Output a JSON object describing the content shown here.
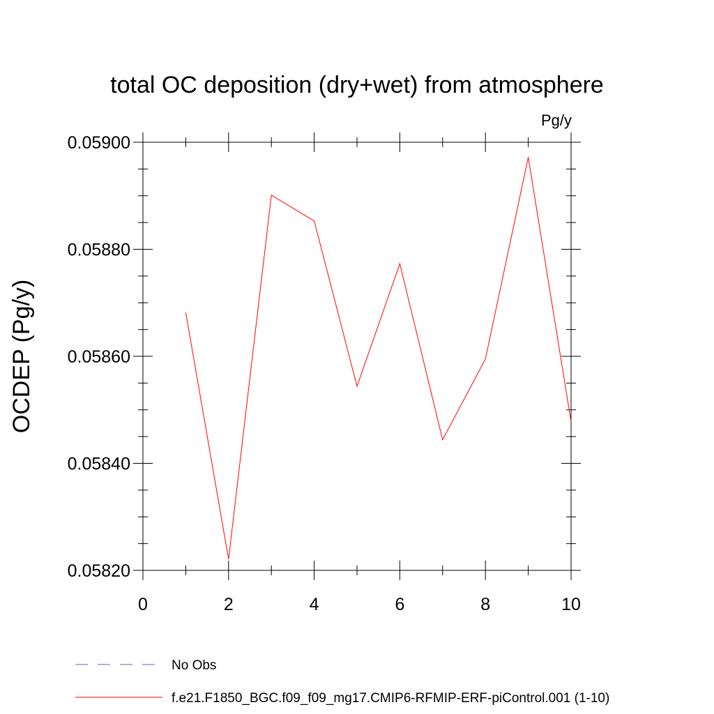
{
  "chart_data": {
    "type": "line",
    "title": "total OC deposition (dry+wet) from atmosphere",
    "units_label": "Pg/y",
    "ylabel": "OCDEP  (Pg/y)",
    "xlabel": "",
    "xlim": [
      0,
      10
    ],
    "ylim": [
      0.0582,
      0.059
    ],
    "x_ticks": [
      0,
      2,
      4,
      6,
      8,
      10
    ],
    "x_tick_labels": [
      "0",
      "2",
      "4",
      "6",
      "8",
      "10"
    ],
    "y_ticks": [
      0.0582,
      0.0584,
      0.0586,
      0.0588,
      0.059
    ],
    "y_tick_labels": [
      "0.05820",
      "0.05840",
      "0.05860",
      "0.05880",
      "0.05900"
    ],
    "grid": false,
    "legend_position": "bottom-left",
    "series": [
      {
        "name": "f.e21.F1850_BGC.f09_f09_mg17.CMIP6-RFMIP-ERF-piControl.001 (1-10)",
        "color": "#ff0000",
        "style": "solid",
        "x": [
          1,
          2,
          3,
          4,
          5,
          6,
          7,
          8,
          9,
          10
        ],
        "y": [
          0.058682,
          0.058221,
          0.058901,
          0.058853,
          0.058544,
          0.058773,
          0.058444,
          0.058595,
          0.058972,
          0.058478
        ]
      }
    ],
    "legend": [
      {
        "label": "No Obs",
        "color": "#6a5acd",
        "style": "dashed"
      },
      {
        "label": "f.e21.F1850_BGC.f09_f09_mg17.CMIP6-RFMIP-ERF-piControl.001 (1-10)",
        "color": "#ff0000",
        "style": "solid"
      }
    ]
  }
}
